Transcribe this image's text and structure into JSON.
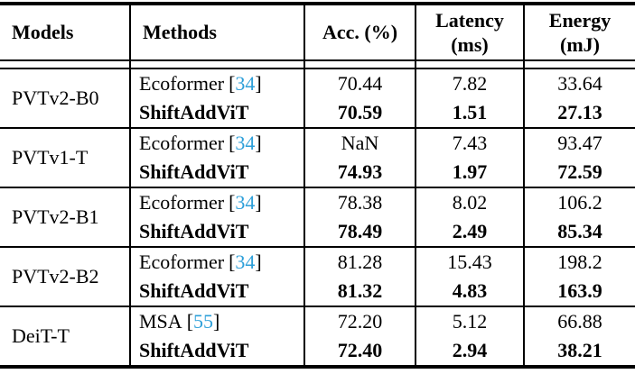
{
  "table": {
    "colors": {
      "citation": "#2d9fd9",
      "text": "#000000",
      "background": "#ffffff",
      "rules": "#000000"
    },
    "header": {
      "models": "Models",
      "methods": "Methods",
      "acc": "Acc. (%)",
      "latency_line1": "Latency",
      "latency_line2": "(ms)",
      "energy_line1": "Energy",
      "energy_line2": "(mJ)"
    },
    "groups": [
      {
        "model": "PVTv2-B0",
        "rows": [
          {
            "method": "Ecoformer",
            "cite_open": "[",
            "cite": "34",
            "cite_close": "]",
            "acc": "70.44",
            "latency": "7.82",
            "energy": "33.64"
          },
          {
            "method": "ShiftAddViT",
            "acc": "70.59",
            "latency": "1.51",
            "energy": "27.13"
          }
        ]
      },
      {
        "model": "PVTv1-T",
        "rows": [
          {
            "method": "Ecoformer",
            "cite_open": "[",
            "cite": "34",
            "cite_close": "]",
            "acc": "NaN",
            "latency": "7.43",
            "energy": "93.47"
          },
          {
            "method": "ShiftAddViT",
            "acc": "74.93",
            "latency": "1.97",
            "energy": "72.59"
          }
        ]
      },
      {
        "model": "PVTv2-B1",
        "rows": [
          {
            "method": "Ecoformer",
            "cite_open": "[",
            "cite": "34",
            "cite_close": "]",
            "acc": "78.38",
            "latency": "8.02",
            "energy": "106.2"
          },
          {
            "method": "ShiftAddViT",
            "acc": "78.49",
            "latency": "2.49",
            "energy": "85.34"
          }
        ]
      },
      {
        "model": "PVTv2-B2",
        "rows": [
          {
            "method": "Ecoformer",
            "cite_open": "[",
            "cite": "34",
            "cite_close": "]",
            "acc": "81.28",
            "latency": "15.43",
            "energy": "198.2"
          },
          {
            "method": "ShiftAddViT",
            "acc": "81.32",
            "latency": "4.83",
            "energy": "163.9"
          }
        ]
      },
      {
        "model": "DeiT-T",
        "rows": [
          {
            "method": "MSA",
            "cite_open": "[",
            "cite": "55",
            "cite_close": "]",
            "acc": "72.20",
            "latency": "5.12",
            "energy": "66.88"
          },
          {
            "method": "ShiftAddViT",
            "acc": "72.40",
            "latency": "2.94",
            "energy": "38.21"
          }
        ]
      }
    ]
  }
}
